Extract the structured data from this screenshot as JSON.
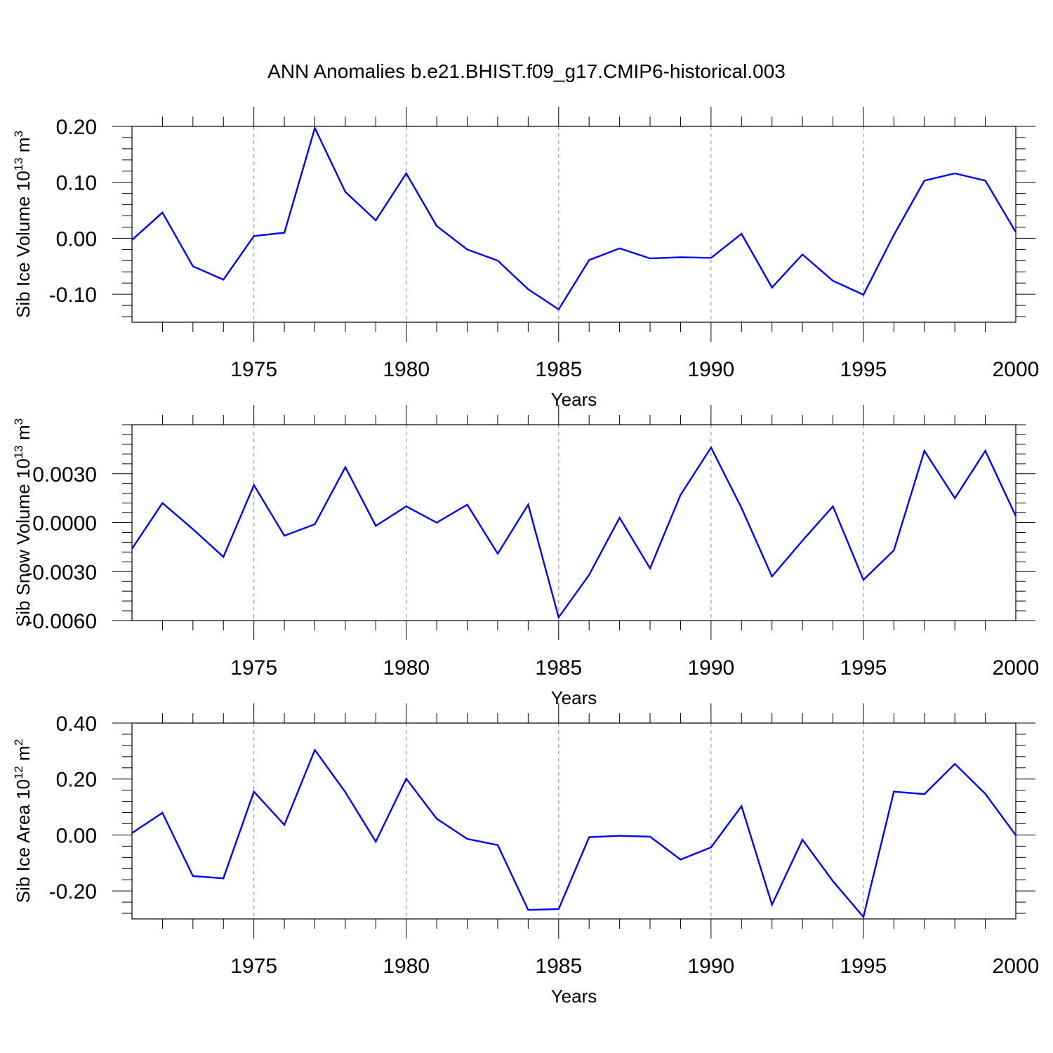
{
  "title": "ANN Anomalies b.e21.BHIST.f09_g17.CMIP6-historical.003",
  "colors": {
    "line": "#0000ff",
    "axes": "#000000",
    "grid": "#888888"
  },
  "chart_data": [
    {
      "type": "line",
      "ylabel_base": "Sib Ice Volume 10",
      "ylabel_exp": "13",
      "ylabel_unit": " m",
      "ylabel_unit_exp": "3",
      "xlabel": "Years",
      "xlim": [
        1971,
        2000
      ],
      "ylim": [
        -0.15,
        0.2
      ],
      "yticks": [
        0.2,
        0.1,
        0.0,
        -0.1
      ],
      "ytick_labels": [
        "0.20",
        "0.10",
        "0.00",
        "-0.10"
      ],
      "yminor_step": 0.02,
      "xticks": [
        1975,
        1980,
        1985,
        1990,
        1995,
        2000
      ],
      "xtick_labels": [
        "1975",
        "1980",
        "1985",
        "1990",
        "1995",
        "2000"
      ],
      "grid": "dashed vertical at major x ticks",
      "series": [
        {
          "name": "Sib Ice Volume anomaly",
          "x": [
            1971,
            1972,
            1973,
            1974,
            1975,
            1976,
            1977,
            1978,
            1979,
            1980,
            1981,
            1982,
            1983,
            1984,
            1985,
            1986,
            1987,
            1988,
            1989,
            1990,
            1991,
            1992,
            1993,
            1994,
            1995,
            1996,
            1997,
            1998,
            1999,
            2000
          ],
          "values": [
            -0.003,
            0.046,
            -0.05,
            -0.074,
            0.004,
            0.01,
            0.197,
            0.083,
            0.032,
            0.116,
            0.022,
            -0.02,
            -0.04,
            -0.091,
            -0.127,
            -0.039,
            -0.018,
            -0.036,
            -0.034,
            -0.035,
            0.008,
            -0.088,
            -0.029,
            -0.076,
            -0.101,
            0.006,
            0.103,
            0.116,
            0.103,
            0.011
          ]
        }
      ]
    },
    {
      "type": "line",
      "ylabel_base": "Sib Snow Volume 10",
      "ylabel_exp": "13",
      "ylabel_unit": " m",
      "ylabel_unit_exp": "3",
      "xlabel": "Years",
      "xlim": [
        1971,
        2000
      ],
      "ylim": [
        -0.006,
        0.006
      ],
      "yticks": [
        0.003,
        0.0,
        -0.003,
        -0.006
      ],
      "ytick_labels": [
        "0.0030",
        "0.0000",
        "-0.0030",
        "-0.0060"
      ],
      "yminor_step": 0.0006,
      "xticks": [
        1975,
        1980,
        1985,
        1990,
        1995,
        2000
      ],
      "xtick_labels": [
        "1975",
        "1980",
        "1985",
        "1990",
        "1995",
        "2000"
      ],
      "grid": "dashed vertical at major x ticks",
      "series": [
        {
          "name": "Sib Snow Volume anomaly",
          "x": [
            1971,
            1972,
            1973,
            1974,
            1975,
            1976,
            1977,
            1978,
            1979,
            1980,
            1981,
            1982,
            1983,
            1984,
            1985,
            1986,
            1987,
            1988,
            1989,
            1990,
            1991,
            1992,
            1993,
            1994,
            1995,
            1996,
            1997,
            1998,
            1999,
            2000
          ],
          "values": [
            -0.0016,
            0.0012,
            -0.0004,
            -0.0021,
            0.0023,
            -0.0008,
            -0.0001,
            0.0034,
            -0.0002,
            0.001,
            0.0,
            0.0011,
            -0.0019,
            0.0011,
            -0.0058,
            -0.0032,
            0.0003,
            -0.0028,
            0.0017,
            0.0046,
            0.0009,
            -0.0033,
            -0.0011,
            0.001,
            -0.0035,
            -0.0017,
            0.0044,
            0.0015,
            0.0044,
            0.0004
          ]
        }
      ]
    },
    {
      "type": "line",
      "ylabel_base": "Sib Ice Area 10",
      "ylabel_exp": "12",
      "ylabel_unit": " m",
      "ylabel_unit_exp": "2",
      "xlabel": "Years",
      "xlim": [
        1971,
        2000
      ],
      "ylim": [
        -0.3,
        0.4
      ],
      "yticks": [
        0.4,
        0.2,
        0.0,
        -0.2
      ],
      "ytick_labels": [
        "0.40",
        "0.20",
        "0.00",
        "-0.20"
      ],
      "yminor_step": 0.04,
      "xticks": [
        1975,
        1980,
        1985,
        1990,
        1995,
        2000
      ],
      "xtick_labels": [
        "1975",
        "1980",
        "1985",
        "1990",
        "1995",
        "2000"
      ],
      "grid": "dashed vertical at major x ticks",
      "series": [
        {
          "name": "Sib Ice Area anomaly",
          "x": [
            1971,
            1972,
            1973,
            1974,
            1975,
            1976,
            1977,
            1978,
            1979,
            1980,
            1981,
            1982,
            1983,
            1984,
            1985,
            1986,
            1987,
            1988,
            1989,
            1990,
            1991,
            1992,
            1993,
            1994,
            1995,
            1996,
            1997,
            1998,
            1999,
            2000
          ],
          "values": [
            0.007,
            0.079,
            -0.147,
            -0.155,
            0.155,
            0.036,
            0.304,
            0.153,
            -0.024,
            0.201,
            0.058,
            -0.014,
            -0.036,
            -0.268,
            -0.265,
            -0.008,
            -0.003,
            -0.006,
            -0.088,
            -0.044,
            0.103,
            -0.249,
            -0.017,
            -0.165,
            -0.293,
            0.155,
            0.146,
            0.254,
            0.147,
            -0.001
          ]
        }
      ]
    }
  ]
}
